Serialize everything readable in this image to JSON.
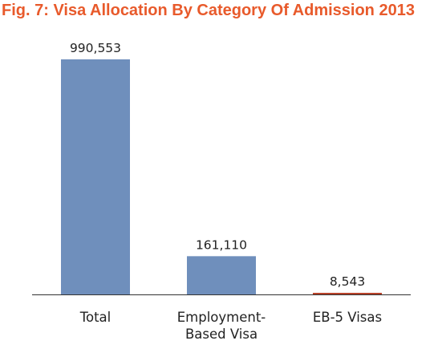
{
  "title": "Fig. 7: Visa Allocation By Category Of Admission 2013",
  "chart_data": {
    "type": "bar",
    "categories": [
      "Total",
      "Employment-Based Visa",
      "EB-5 Visas"
    ],
    "category_lines": [
      [
        "Total"
      ],
      [
        "Employment-",
        "Based Visa"
      ],
      [
        "EB-5 Visas"
      ]
    ],
    "values": [
      990553,
      161110,
      8543
    ],
    "value_labels": [
      "990,553",
      "161,110",
      "8,543"
    ],
    "ylim": [
      0,
      990553
    ],
    "grid": false,
    "legend": "none",
    "bar_color": "#6f8fbc",
    "small_bar_color": "#b8432a",
    "axis_color": "#333333"
  }
}
